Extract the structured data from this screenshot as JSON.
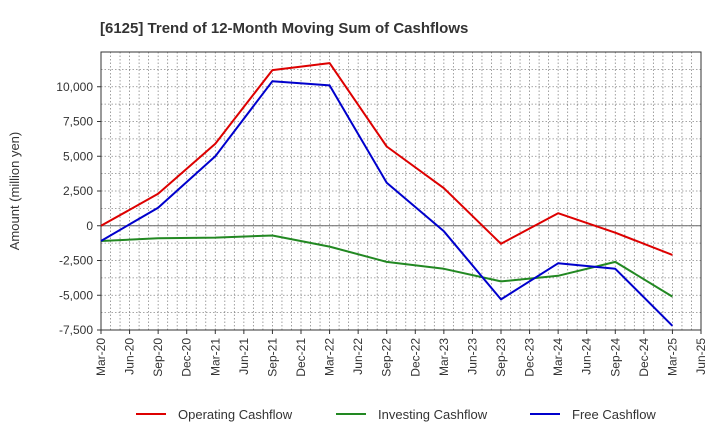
{
  "chart_data": {
    "type": "line",
    "title": "[6125]  Trend of 12-Month Moving Sum of Cashflows",
    "ylabel": "Amount (million yen)",
    "xlabel": "",
    "ylim": [
      -7500,
      12500
    ],
    "yticks": [
      10000,
      7500,
      5000,
      2500,
      0,
      -2500,
      -5000,
      -7500
    ],
    "ytick_labels": [
      "10,000",
      "7,500",
      "5,000",
      "2,500",
      "0",
      "-2,500",
      "-5,000",
      "-7,500"
    ],
    "categories": [
      "Mar-20",
      "Jun-20",
      "Sep-20",
      "Dec-20",
      "Mar-21",
      "Jun-21",
      "Sep-21",
      "Dec-21",
      "Mar-22",
      "Jun-22",
      "Sep-22",
      "Dec-22",
      "Mar-23",
      "Jun-23",
      "Sep-23",
      "Dec-23",
      "Mar-24",
      "Jun-24",
      "Sep-24",
      "Dec-24",
      "Mar-25",
      "Jun-25"
    ],
    "grid": true,
    "legend_position": "bottom",
    "series": [
      {
        "name": "Operating Cashflow",
        "color": "#dd0000",
        "points": [
          [
            "Mar-20",
            0
          ],
          [
            "Sep-20",
            2300
          ],
          [
            "Mar-21",
            5900
          ],
          [
            "Sep-21",
            11200
          ],
          [
            "Mar-22",
            11700
          ],
          [
            "Sep-22",
            5700
          ],
          [
            "Mar-23",
            2700
          ],
          [
            "Sep-23",
            -1300
          ],
          [
            "Mar-24",
            900
          ],
          [
            "Sep-24",
            -500
          ],
          [
            "Mar-25",
            -2100
          ]
        ]
      },
      {
        "name": "Investing Cashflow",
        "color": "#228822",
        "points": [
          [
            "Mar-20",
            -1100
          ],
          [
            "Sep-20",
            -900
          ],
          [
            "Mar-21",
            -850
          ],
          [
            "Sep-21",
            -700
          ],
          [
            "Mar-22",
            -1500
          ],
          [
            "Sep-22",
            -2600
          ],
          [
            "Mar-23",
            -3100
          ],
          [
            "Sep-23",
            -4000
          ],
          [
            "Mar-24",
            -3600
          ],
          [
            "Sep-24",
            -2600
          ],
          [
            "Mar-25",
            -5100
          ]
        ]
      },
      {
        "name": "Free Cashflow",
        "color": "#0000cc",
        "points": [
          [
            "Mar-20",
            -1100
          ],
          [
            "Sep-20",
            1300
          ],
          [
            "Mar-21",
            5000
          ],
          [
            "Sep-21",
            10400
          ],
          [
            "Mar-22",
            10100
          ],
          [
            "Sep-22",
            3100
          ],
          [
            "Mar-23",
            -400
          ],
          [
            "Sep-23",
            -5300
          ],
          [
            "Mar-24",
            -2700
          ],
          [
            "Sep-24",
            -3100
          ],
          [
            "Mar-25",
            -7200
          ]
        ]
      }
    ]
  }
}
